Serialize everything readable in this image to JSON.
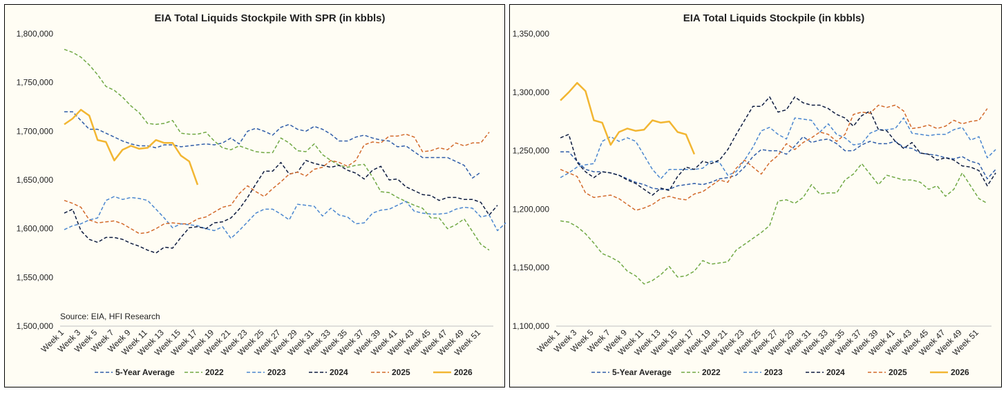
{
  "week_labels": [
    "Week 1",
    "Week 3",
    "Week 5",
    "Week 7",
    "Week 9",
    "Week 11",
    "Week 13",
    "Week 15",
    "Week 17",
    "Week 19",
    "Week 21",
    "Week 23",
    "Week 25",
    "Week 27",
    "Week 29",
    "Week 31",
    "Week 33",
    "Week 35",
    "Week 37",
    "Week 39",
    "Week 41",
    "Week 43",
    "Week 45",
    "Week 47",
    "Week 49",
    "Week 51"
  ],
  "colors": {
    "five_year": "#2e5ca8",
    "y2022": "#70a844",
    "y2023": "#4a86cf",
    "y2024": "#0d1b3e",
    "y2025": "#d2692a",
    "y2026": "#f2b632"
  },
  "chart_data": [
    {
      "type": "line",
      "title": "EIA Total Liquids Stockpile With SPR (in kbbls)",
      "annotation": "Source: EIA, HFI Research",
      "ylim": [
        1500000,
        1800000
      ],
      "yticks": [
        "1,500,000",
        "1,550,000",
        "1,600,000",
        "1,650,000",
        "1,700,000",
        "1,750,000",
        "1,800,000"
      ],
      "ytick_values": [
        1500000,
        1550000,
        1600000,
        1650000,
        1700000,
        1750000,
        1800000
      ],
      "legend_position": "bottom",
      "series": [
        {
          "name": "5-Year Average",
          "style": "dashed",
          "color_key": "five_year",
          "values": [
            1720000,
            1720000,
            1711000,
            1702000,
            1702000,
            1698000,
            1694000,
            1690000,
            1687000,
            1685000,
            1685000,
            1683000,
            1686000,
            1686000,
            1684000,
            1685000,
            1686000,
            1687000,
            1686000,
            1688000,
            1693000,
            1687000,
            1700000,
            1703000,
            1700000,
            1696000,
            1704000,
            1707000,
            1702000,
            1700000,
            1705000,
            1702000,
            1697000,
            1690000,
            1690000,
            1694000,
            1696000,
            1693000,
            1691000,
            1690000,
            1684000,
            1685000,
            1679000,
            1673000,
            1673000,
            1673000,
            1673000,
            1669000,
            1665000,
            1652000,
            1658000
          ]
        },
        {
          "name": "2022",
          "style": "dashed",
          "color_key": "y2022",
          "values": [
            1784000,
            1781000,
            1776000,
            1768000,
            1758000,
            1746000,
            1742000,
            1735000,
            1726000,
            1719000,
            1708000,
            1707000,
            1708000,
            1711000,
            1698000,
            1697000,
            1697000,
            1699000,
            1690000,
            1683000,
            1681000,
            1685000,
            1682000,
            1679000,
            1678000,
            1678000,
            1693000,
            1688000,
            1680000,
            1679000,
            1687000,
            1676000,
            1670000,
            1665000,
            1663000,
            1665000,
            1666000,
            1653000,
            1638000,
            1637000,
            1632000,
            1628000,
            1624000,
            1621000,
            1611000,
            1611000,
            1600000,
            1604000,
            1610000,
            1597000,
            1584000,
            1578000
          ]
        },
        {
          "name": "2023",
          "style": "dashed",
          "color_key": "y2023",
          "values": [
            1599000,
            1603000,
            1605000,
            1609000,
            1611000,
            1629000,
            1633000,
            1630000,
            1632000,
            1631000,
            1629000,
            1620000,
            1611000,
            1601000,
            1605000,
            1604000,
            1603000,
            1600000,
            1598000,
            1602000,
            1590000,
            1598000,
            1607000,
            1616000,
            1620000,
            1620000,
            1615000,
            1609000,
            1625000,
            1624000,
            1623000,
            1613000,
            1621000,
            1614000,
            1612000,
            1605000,
            1606000,
            1616000,
            1619000,
            1620000,
            1624000,
            1628000,
            1618000,
            1616000,
            1615000,
            1615000,
            1616000,
            1620000,
            1622000,
            1621000,
            1612000,
            1614000,
            1598000,
            1606000
          ]
        },
        {
          "name": "2024",
          "style": "dashed",
          "color_key": "y2024",
          "values": [
            1616000,
            1620000,
            1598000,
            1589000,
            1586000,
            1591000,
            1591000,
            1589000,
            1585000,
            1582000,
            1578000,
            1575000,
            1581000,
            1580000,
            1591000,
            1601000,
            1602000,
            1600000,
            1606000,
            1607000,
            1611000,
            1620000,
            1632000,
            1646000,
            1659000,
            1659000,
            1668000,
            1656000,
            1658000,
            1670000,
            1667000,
            1665000,
            1663000,
            1665000,
            1660000,
            1657000,
            1651000,
            1660000,
            1664000,
            1650000,
            1651000,
            1643000,
            1639000,
            1635000,
            1634000,
            1629000,
            1632000,
            1632000,
            1630000,
            1630000,
            1627000,
            1614000,
            1624000
          ]
        },
        {
          "name": "2025",
          "style": "dashed",
          "color_key": "y2025",
          "values": [
            1629000,
            1626000,
            1622000,
            1609000,
            1606000,
            1607000,
            1608000,
            1605000,
            1600000,
            1595000,
            1596000,
            1600000,
            1605000,
            1606000,
            1605000,
            1605000,
            1610000,
            1612000,
            1617000,
            1622000,
            1624000,
            1636000,
            1644000,
            1638000,
            1633000,
            1641000,
            1648000,
            1656000,
            1658000,
            1654000,
            1661000,
            1663000,
            1670000,
            1668000,
            1664000,
            1670000,
            1686000,
            1689000,
            1688000,
            1695000,
            1695000,
            1697000,
            1694000,
            1679000,
            1680000,
            1683000,
            1681000,
            1688000,
            1685000,
            1688000,
            1688000,
            1699000
          ]
        },
        {
          "name": "2026",
          "style": "solid",
          "color_key": "y2026",
          "values": [
            1707000,
            1713000,
            1722000,
            1716000,
            1691000,
            1689000,
            1670000,
            1681000,
            1685000,
            1682000,
            1683000,
            1691000,
            1688000,
            1688000,
            1675000,
            1669000,
            1645000
          ]
        }
      ]
    },
    {
      "type": "line",
      "title": "EIA Total Liquids Stockpile (in kbbls)",
      "ylim": [
        1100000,
        1350000
      ],
      "yticks": [
        "1,100,000",
        "1,150,000",
        "1,200,000",
        "1,250,000",
        "1,300,000",
        "1,350,000"
      ],
      "ytick_values": [
        1100000,
        1150000,
        1200000,
        1250000,
        1300000,
        1350000
      ],
      "legend_position": "bottom",
      "series": [
        {
          "name": "5-Year Average",
          "style": "dashed",
          "color_key": "five_year",
          "values": [
            1249000,
            1249000,
            1241000,
            1234000,
            1232000,
            1232000,
            1231000,
            1229000,
            1226000,
            1223000,
            1221000,
            1218000,
            1217000,
            1217000,
            1220000,
            1221000,
            1222000,
            1221000,
            1223000,
            1226000,
            1227000,
            1229000,
            1236000,
            1245000,
            1251000,
            1250000,
            1250000,
            1247000,
            1254000,
            1262000,
            1257000,
            1259000,
            1260000,
            1256000,
            1250000,
            1250000,
            1255000,
            1258000,
            1256000,
            1256000,
            1258000,
            1253000,
            1252000,
            1248000,
            1247000,
            1246000,
            1244000,
            1243000,
            1245000,
            1241000,
            1239000,
            1226000,
            1234000
          ]
        },
        {
          "name": "2022",
          "style": "dashed",
          "color_key": "y2022",
          "values": [
            1190000,
            1189000,
            1185000,
            1179000,
            1171000,
            1162000,
            1159000,
            1155000,
            1147000,
            1143000,
            1136000,
            1139000,
            1144000,
            1151000,
            1142000,
            1143000,
            1147000,
            1156000,
            1153000,
            1154000,
            1155000,
            1165000,
            1170000,
            1175000,
            1180000,
            1186000,
            1207000,
            1208000,
            1205000,
            1210000,
            1221000,
            1213000,
            1214000,
            1214000,
            1225000,
            1230000,
            1239000,
            1230000,
            1221000,
            1229000,
            1227000,
            1225000,
            1225000,
            1223000,
            1217000,
            1220000,
            1211000,
            1217000,
            1231000,
            1220000,
            1209000,
            1205000
          ]
        },
        {
          "name": "2023",
          "style": "dashed",
          "color_key": "y2023",
          "values": [
            1227000,
            1231000,
            1236000,
            1238000,
            1239000,
            1258000,
            1262000,
            1258000,
            1261000,
            1258000,
            1246000,
            1234000,
            1226000,
            1234000,
            1234000,
            1234000,
            1234000,
            1235000,
            1241000,
            1240000,
            1229000,
            1232000,
            1242000,
            1253000,
            1267000,
            1270000,
            1264000,
            1260000,
            1278000,
            1277000,
            1276000,
            1266000,
            1273000,
            1264000,
            1261000,
            1255000,
            1256000,
            1265000,
            1268000,
            1268000,
            1269000,
            1278000,
            1265000,
            1264000,
            1263000,
            1264000,
            1264000,
            1268000,
            1270000,
            1259000,
            1262000,
            1244000,
            1251000
          ]
        },
        {
          "name": "2024",
          "style": "dashed",
          "color_key": "y2024",
          "values": [
            1261000,
            1264000,
            1240000,
            1232000,
            1227000,
            1232000,
            1231000,
            1229000,
            1225000,
            1222000,
            1217000,
            1212000,
            1218000,
            1216000,
            1228000,
            1236000,
            1234000,
            1241000,
            1239000,
            1242000,
            1251000,
            1264000,
            1276000,
            1288000,
            1288000,
            1296000,
            1283000,
            1285000,
            1296000,
            1291000,
            1289000,
            1289000,
            1286000,
            1281000,
            1278000,
            1271000,
            1280000,
            1284000,
            1268000,
            1267000,
            1258000,
            1252000,
            1257000,
            1248000,
            1247000,
            1242000,
            1244000,
            1242000,
            1237000,
            1236000,
            1233000,
            1220000,
            1231000
          ]
        },
        {
          "name": "2025",
          "style": "dashed",
          "color_key": "y2025",
          "values": [
            1234000,
            1231000,
            1228000,
            1214000,
            1210000,
            1211000,
            1212000,
            1209000,
            1204000,
            1199000,
            1201000,
            1204000,
            1209000,
            1211000,
            1209000,
            1208000,
            1213000,
            1215000,
            1220000,
            1225000,
            1223000,
            1235000,
            1242000,
            1236000,
            1230000,
            1240000,
            1246000,
            1256000,
            1251000,
            1257000,
            1261000,
            1266000,
            1264000,
            1258000,
            1264000,
            1281000,
            1283000,
            1282000,
            1289000,
            1287000,
            1289000,
            1284000,
            1269000,
            1270000,
            1272000,
            1269000,
            1271000,
            1276000,
            1273000,
            1275000,
            1276000,
            1286000
          ]
        },
        {
          "name": "2026",
          "style": "solid",
          "color_key": "y2026",
          "values": [
            1293000,
            1300000,
            1308000,
            1301000,
            1276000,
            1274000,
            1255000,
            1266000,
            1269000,
            1267000,
            1268000,
            1276000,
            1274000,
            1275000,
            1266000,
            1264000,
            1247000
          ]
        }
      ]
    }
  ]
}
